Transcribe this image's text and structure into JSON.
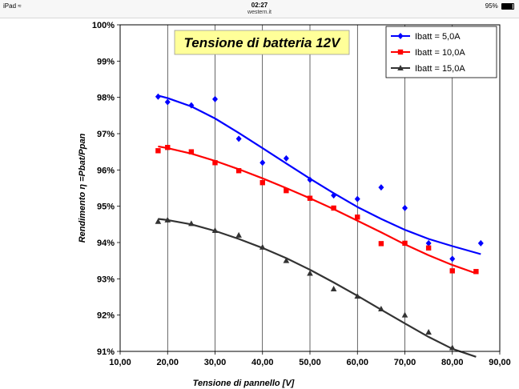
{
  "status_bar": {
    "device": "iPad",
    "time": "02:27",
    "url": "western.it",
    "battery": "95%",
    "wifi_icon": "wifi-icon",
    "battery_icon": "battery-icon"
  },
  "chart_data": {
    "type": "scatter",
    "title": "Tensione di batteria 12V",
    "xlabel": "Tensione di pannello [V]",
    "ylabel": "Rendimento η =Pbat/Ppan",
    "xlim": [
      10,
      90
    ],
    "ylim": [
      91,
      100
    ],
    "xticks": [
      "10,00",
      "20,00",
      "30,00",
      "40,00",
      "50,00",
      "60,00",
      "70,00",
      "80,00",
      "90,00"
    ],
    "yticks": [
      "91%",
      "92%",
      "93%",
      "94%",
      "95%",
      "96%",
      "97%",
      "98%",
      "99%",
      "100%"
    ],
    "grid": "vertical",
    "legend_position": "top-right",
    "colors": {
      "blue": "#0000ff",
      "red": "#ff0000",
      "dark": "#333333",
      "title_bg": "#ffff99"
    },
    "series": [
      {
        "name": "Ibatt = 5,0A",
        "color": "#0000ff",
        "marker": "diamond",
        "points": [
          [
            18,
            98.02
          ],
          [
            20,
            97.87
          ],
          [
            25,
            97.78
          ],
          [
            30,
            97.95
          ],
          [
            35,
            96.86
          ],
          [
            40,
            96.2
          ],
          [
            45,
            96.32
          ],
          [
            50,
            95.73
          ],
          [
            55,
            95.3
          ],
          [
            60,
            95.2
          ],
          [
            65,
            95.52
          ],
          [
            70,
            94.95
          ],
          [
            75,
            93.98
          ],
          [
            80,
            93.55
          ],
          [
            86,
            93.98
          ]
        ],
        "trend": [
          [
            18,
            98.05
          ],
          [
            20,
            97.98
          ],
          [
            25,
            97.75
          ],
          [
            30,
            97.42
          ],
          [
            35,
            97.02
          ],
          [
            40,
            96.6
          ],
          [
            45,
            96.18
          ],
          [
            50,
            95.76
          ],
          [
            55,
            95.36
          ],
          [
            60,
            94.98
          ],
          [
            65,
            94.65
          ],
          [
            70,
            94.35
          ],
          [
            75,
            94.1
          ],
          [
            80,
            93.9
          ],
          [
            86,
            93.68
          ]
        ]
      },
      {
        "name": "Ibatt = 10,0A",
        "color": "#ff0000",
        "marker": "square",
        "points": [
          [
            18,
            96.53
          ],
          [
            20,
            96.62
          ],
          [
            25,
            96.5
          ],
          [
            30,
            96.2
          ],
          [
            35,
            95.98
          ],
          [
            40,
            95.65
          ],
          [
            45,
            95.43
          ],
          [
            50,
            95.22
          ],
          [
            55,
            94.95
          ],
          [
            60,
            94.7
          ],
          [
            65,
            93.97
          ],
          [
            70,
            93.98
          ],
          [
            75,
            93.85
          ],
          [
            80,
            93.22
          ],
          [
            85,
            93.2
          ]
        ],
        "trend": [
          [
            18,
            96.65
          ],
          [
            20,
            96.6
          ],
          [
            25,
            96.45
          ],
          [
            30,
            96.25
          ],
          [
            35,
            96.02
          ],
          [
            40,
            95.77
          ],
          [
            45,
            95.5
          ],
          [
            50,
            95.22
          ],
          [
            55,
            94.92
          ],
          [
            60,
            94.6
          ],
          [
            65,
            94.28
          ],
          [
            70,
            93.95
          ],
          [
            75,
            93.65
          ],
          [
            80,
            93.38
          ],
          [
            85,
            93.15
          ]
        ]
      },
      {
        "name": "Ibatt = 15,0A",
        "color": "#333333",
        "marker": "triangle",
        "points": [
          [
            18,
            94.58
          ],
          [
            20,
            94.62
          ],
          [
            25,
            94.52
          ],
          [
            30,
            94.33
          ],
          [
            35,
            94.2
          ],
          [
            40,
            93.87
          ],
          [
            45,
            93.5
          ],
          [
            50,
            93.15
          ],
          [
            55,
            92.72
          ],
          [
            60,
            92.52
          ],
          [
            65,
            92.17
          ],
          [
            70,
            92.0
          ],
          [
            75,
            91.53
          ],
          [
            80,
            91.1
          ]
        ],
        "trend": [
          [
            18,
            94.65
          ],
          [
            20,
            94.62
          ],
          [
            25,
            94.5
          ],
          [
            30,
            94.32
          ],
          [
            35,
            94.1
          ],
          [
            40,
            93.85
          ],
          [
            45,
            93.57
          ],
          [
            50,
            93.25
          ],
          [
            55,
            92.9
          ],
          [
            60,
            92.53
          ],
          [
            65,
            92.15
          ],
          [
            70,
            91.77
          ],
          [
            75,
            91.4
          ],
          [
            80,
            91.07
          ],
          [
            85,
            90.85
          ]
        ]
      }
    ]
  }
}
